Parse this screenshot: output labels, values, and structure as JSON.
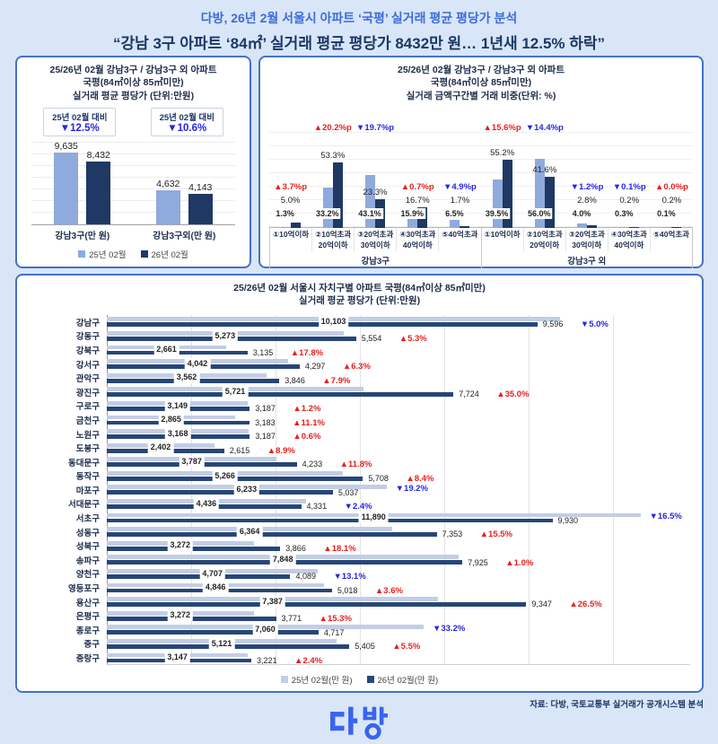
{
  "header": {
    "line1": "다방, 26년 2월 서울시 아파트 ‘국평’ 실거래 평균 평당가 분석",
    "line2": "“강남 3구 아파트 ‘84㎡’ 실거래 평균 평당가 8432만 원… 1년새 12.5% 하락”"
  },
  "colors": {
    "background": "#d9e6f8",
    "panel_border": "#4472c4",
    "title_blue": "#3f6cd9",
    "navy_text": "#1d3766",
    "bar_2502_top": "#8faadc",
    "bar_2602_top": "#1f3864",
    "bar_2502_bottom": "#c3cde6",
    "bar_2602_bottom": "#264678",
    "increase_red": "#e7211f",
    "decrease_blue": "#2525e8",
    "logo_blue": "#3a63f0"
  },
  "chart_data": [
    {
      "id": "gangnam3-avg-price",
      "type": "bar",
      "title_lines": [
        "25/26년 02월 강남3구 / 강남3구 외 아파트",
        "국평(84㎡이상 85㎡미만)",
        "실거래 평균 평당가 (단위:만원)"
      ],
      "series": [
        "25년 02월",
        "26년 02월"
      ],
      "ylabel": "만원",
      "ylim": [
        0,
        10000
      ],
      "grid": true,
      "groups": [
        {
          "category": "강남3구(만 원)",
          "compare_note": "25년 02월 대비",
          "change": "▼12.5%",
          "direction": "down",
          "values": [
            9635,
            8432
          ],
          "labels": [
            "9,635",
            "8,432"
          ]
        },
        {
          "category": "강남3구외(만 원)",
          "compare_note": "25년 02월 대비",
          "change": "▼10.6%",
          "direction": "down",
          "values": [
            4632,
            4143
          ],
          "labels": [
            "4,632",
            "4,143"
          ]
        }
      ]
    },
    {
      "id": "price-band-share",
      "type": "bar",
      "title_lines": [
        "25/26년 02월 강남3구 / 강남3구 외 아파트",
        "국평(84㎡이상 85㎡미만)",
        "실거래 금액구간별 거래 비중(단위: %)"
      ],
      "series": [
        "25년 02월",
        "26년 02월"
      ],
      "ylabel": "%",
      "ylim": [
        0,
        70
      ],
      "grid": true,
      "groups": [
        {
          "name": "강남3구",
          "categories": [
            {
              "label": [
                "①10억이하"
              ],
              "v25": 1.3,
              "v26": 5.0,
              "l25": "1.3%",
              "l26": "5.0%",
              "change": "▲3.7%p",
              "direction": "up"
            },
            {
              "label": [
                "②10억초과",
                "20억이하"
              ],
              "v25": 33.2,
              "v26": 53.3,
              "l25": "33.2%",
              "l26": "53.3%",
              "change": "▲20.2%p",
              "direction": "up"
            },
            {
              "label": [
                "③20억초과",
                "30억이하"
              ],
              "v25": 43.1,
              "v26": 23.3,
              "l25": "43.1%",
              "l26": "23.3%",
              "change": "▼19.7%p",
              "direction": "down"
            },
            {
              "label": [
                "④30억초과",
                "40억이하"
              ],
              "v25": 15.9,
              "v26": 16.7,
              "l25": "15.9%",
              "l26": "16.7%",
              "change": "▲0.7%p",
              "direction": "up"
            },
            {
              "label": [
                "⑤40억초과"
              ],
              "v25": 6.5,
              "v26": 1.7,
              "l25": "6.5%",
              "l26": "1.7%",
              "change": "▼4.9%p",
              "direction": "down"
            }
          ]
        },
        {
          "name": "강남3구 외",
          "categories": [
            {
              "label": [
                "①10억이하"
              ],
              "v25": 39.5,
              "v26": 55.2,
              "l25": "39.5%",
              "l26": "55.2%",
              "change": "▲15.6%p",
              "direction": "up"
            },
            {
              "label": [
                "②10억초과",
                "20억이하"
              ],
              "v25": 56.0,
              "v26": 41.6,
              "l25": "56.0%",
              "l26": "41.6%",
              "change": "▼14.4%p",
              "direction": "down"
            },
            {
              "label": [
                "③20억초과",
                "30억이하"
              ],
              "v25": 4.0,
              "v26": 2.8,
              "l25": "4.0%",
              "l26": "2.8%",
              "change": "▼1.2%p",
              "direction": "down"
            },
            {
              "label": [
                "④30억초과",
                "40억이하"
              ],
              "v25": 0.3,
              "v26": 0.2,
              "l25": "0.3%",
              "l26": "0.2%",
              "change": "▼0.1%p",
              "direction": "down"
            },
            {
              "label": [
                "⑤40억초과"
              ],
              "v25": 0.1,
              "v26": 0.2,
              "l25": "0.1%",
              "l26": "0.2%",
              "change": "▲0.0%p",
              "direction": "up"
            }
          ]
        }
      ]
    },
    {
      "id": "seoul-district-avg-price",
      "type": "bar",
      "orientation": "horizontal",
      "title_lines": [
        "25/26년 02월 서울시 자치구별 아파트 국평(84㎡이상 85㎡미만)",
        "실거래 평균 평당가 (단위:만원)"
      ],
      "series": [
        "25년 02월(만 원)",
        "26년 02월(만 원)"
      ],
      "xlim": [
        0,
        13200
      ],
      "grid": true,
      "districts": [
        {
          "name": "강남구",
          "v25": 10103,
          "v26": 9596,
          "l25": "10,103",
          "l26": "9,596",
          "change": "▼5.0%",
          "direction": "down"
        },
        {
          "name": "강동구",
          "v25": 5273,
          "v26": 5554,
          "l25": "5,273",
          "l26": "5,554",
          "change": "▲5.3%",
          "direction": "up"
        },
        {
          "name": "강북구",
          "v25": 2661,
          "v26": 3135,
          "l25": "2,661",
          "l26": "3,135",
          "change": "▲17.8%",
          "direction": "up"
        },
        {
          "name": "강서구",
          "v25": 4042,
          "v26": 4297,
          "l25": "4,042",
          "l26": "4,297",
          "change": "▲6.3%",
          "direction": "up"
        },
        {
          "name": "관악구",
          "v25": 3562,
          "v26": 3846,
          "l25": "3,562",
          "l26": "3,846",
          "change": "▲7.9%",
          "direction": "up"
        },
        {
          "name": "광진구",
          "v25": 5721,
          "v26": 7724,
          "l25": "5,721",
          "l26": "7,724",
          "change": "▲35.0%",
          "direction": "up"
        },
        {
          "name": "구로구",
          "v25": 3149,
          "v26": 3187,
          "l25": "3,149",
          "l26": "3,187",
          "change": "▲1.2%",
          "direction": "up"
        },
        {
          "name": "금천구",
          "v25": 2865,
          "v26": 3183,
          "l25": "2,865",
          "l26": "3,183",
          "change": "▲11.1%",
          "direction": "up"
        },
        {
          "name": "노원구",
          "v25": 3168,
          "v26": 3187,
          "l25": "3,168",
          "l26": "3,187",
          "change": "▲0.6%",
          "direction": "up"
        },
        {
          "name": "도봉구",
          "v25": 2402,
          "v26": 2615,
          "l25": "2,402",
          "l26": "2,615",
          "change": "▲8.9%",
          "direction": "up"
        },
        {
          "name": "동대문구",
          "v25": 3787,
          "v26": 4233,
          "l25": "3,787",
          "l26": "4,233",
          "change": "▲11.8%",
          "direction": "up"
        },
        {
          "name": "동작구",
          "v25": 5266,
          "v26": 5708,
          "l25": "5,266",
          "l26": "5,708",
          "change": "▲8.4%",
          "direction": "up"
        },
        {
          "name": "마포구",
          "v25": 6233,
          "v26": 5037,
          "l25": "6,233",
          "l26": "5,037",
          "change": "▼19.2%",
          "direction": "down"
        },
        {
          "name": "서대문구",
          "v25": 4436,
          "v26": 4331,
          "l25": "4,436",
          "l26": "4,331",
          "change": "▼2.4%",
          "direction": "down"
        },
        {
          "name": "서초구",
          "v25": 11890,
          "v26": 9930,
          "l25": "11,890",
          "l26": "9,930",
          "change": "▼16.5%",
          "direction": "down"
        },
        {
          "name": "성동구",
          "v25": 6364,
          "v26": 7353,
          "l25": "6,364",
          "l26": "7,353",
          "change": "▲15.5%",
          "direction": "up"
        },
        {
          "name": "성북구",
          "v25": 3272,
          "v26": 3866,
          "l25": "3,272",
          "l26": "3,866",
          "change": "▲18.1%",
          "direction": "up"
        },
        {
          "name": "송파구",
          "v25": 7848,
          "v26": 7925,
          "l25": "7,848",
          "l26": "7,925",
          "change": "▲1.0%",
          "direction": "up"
        },
        {
          "name": "양천구",
          "v25": 4707,
          "v26": 4089,
          "l25": "4,707",
          "l26": "4,089",
          "change": "▼13.1%",
          "direction": "down"
        },
        {
          "name": "영등포구",
          "v25": 4846,
          "v26": 5018,
          "l25": "4,846",
          "l26": "5,018",
          "change": "▲3.6%",
          "direction": "up"
        },
        {
          "name": "용산구",
          "v25": 7387,
          "v26": 9347,
          "l25": "7,387",
          "l26": "9,347",
          "change": "▲26.5%",
          "direction": "up"
        },
        {
          "name": "은평구",
          "v25": 3272,
          "v26": 3771,
          "l25": "3,272",
          "l26": "3,771",
          "change": "▲15.3%",
          "direction": "up"
        },
        {
          "name": "종로구",
          "v25": 7060,
          "v26": 4717,
          "l25": "7,060",
          "l26": "4,717",
          "change": "▼33.2%",
          "direction": "down"
        },
        {
          "name": "중구",
          "v25": 5121,
          "v26": 5405,
          "l25": "5,121",
          "l26": "5,405",
          "change": "▲5.5%",
          "direction": "up"
        },
        {
          "name": "중랑구",
          "v25": 3147,
          "v26": 3221,
          "l25": "3,147",
          "l26": "3,221",
          "change": "▲2.4%",
          "direction": "up"
        }
      ]
    }
  ],
  "footer": {
    "source": "자료: 다방, 국토교통부 실거래가 공개시스템 분석",
    "logo_text": "다방"
  }
}
